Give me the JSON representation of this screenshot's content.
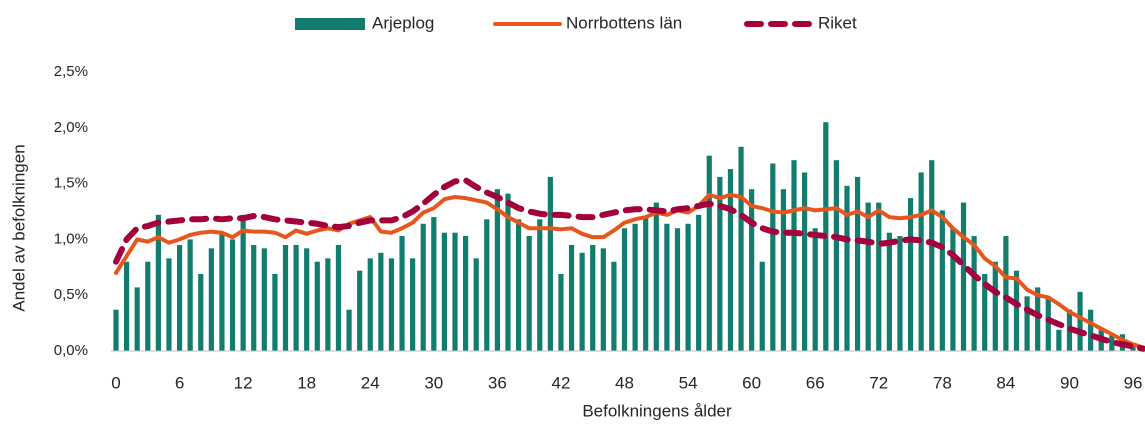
{
  "chart_data": {
    "type": "bar",
    "x_label": "Befolkningens ålder",
    "y_label": "Andel av befolkningen",
    "x": [
      0,
      1,
      2,
      3,
      4,
      5,
      6,
      7,
      8,
      9,
      10,
      11,
      12,
      13,
      14,
      15,
      16,
      17,
      18,
      19,
      20,
      21,
      22,
      23,
      24,
      25,
      26,
      27,
      28,
      29,
      30,
      31,
      32,
      33,
      34,
      35,
      36,
      37,
      38,
      39,
      40,
      41,
      42,
      43,
      44,
      45,
      46,
      47,
      48,
      49,
      50,
      51,
      52,
      53,
      54,
      55,
      56,
      57,
      58,
      59,
      60,
      61,
      62,
      63,
      64,
      65,
      66,
      67,
      68,
      69,
      70,
      71,
      72,
      73,
      74,
      75,
      76,
      77,
      78,
      79,
      80,
      81,
      82,
      83,
      84,
      85,
      86,
      87,
      88,
      89,
      90,
      91,
      92,
      93,
      94,
      95,
      96,
      97
    ],
    "xlim": [
      -0.5,
      97
    ],
    "xticks": [
      0,
      6,
      12,
      18,
      24,
      30,
      36,
      42,
      48,
      54,
      60,
      66,
      72,
      78,
      84,
      90,
      96
    ],
    "ylim": [
      0,
      2.5
    ],
    "yticks": [
      {
        "value": 0,
        "label": "0,0%"
      },
      {
        "value": 0.5,
        "label": "0,5%"
      },
      {
        "value": 1,
        "label": "1,0%"
      },
      {
        "value": 1.5,
        "label": "1,5%"
      },
      {
        "value": 2,
        "label": "2,0%"
      },
      {
        "value": 2.5,
        "label": "2,5%"
      }
    ],
    "grid": false,
    "legend": "top",
    "series": [
      {
        "name": "Arjeplog",
        "type": "bar",
        "color": "#137d6d",
        "values": [
          0.37,
          0.8,
          0.57,
          0.8,
          1.22,
          0.83,
          0.95,
          1.0,
          0.69,
          0.92,
          1.05,
          1.0,
          1.22,
          0.95,
          0.92,
          0.69,
          0.95,
          0.95,
          0.92,
          0.8,
          0.83,
          0.95,
          0.37,
          0.72,
          0.83,
          0.88,
          0.83,
          1.03,
          0.83,
          1.14,
          1.2,
          1.06,
          1.06,
          1.03,
          0.83,
          1.18,
          1.45,
          1.41,
          1.18,
          1.03,
          1.18,
          1.56,
          0.69,
          0.95,
          0.88,
          0.95,
          0.92,
          0.8,
          1.1,
          1.14,
          1.2,
          1.33,
          1.14,
          1.1,
          1.14,
          1.22,
          1.75,
          1.56,
          1.63,
          1.83,
          1.45,
          0.8,
          1.68,
          1.45,
          1.71,
          1.6,
          1.1,
          2.05,
          1.71,
          1.48,
          1.56,
          1.33,
          1.33,
          1.06,
          1.03,
          1.37,
          1.6,
          1.71,
          1.26,
          1.1,
          1.33,
          1.03,
          0.69,
          0.8,
          1.03,
          0.72,
          0.49,
          0.57,
          0.49,
          0.19,
          0.37,
          0.53,
          0.37,
          0.19,
          0.15,
          0.15,
          0.05,
          0.02
        ]
      },
      {
        "name": "Norrbottens län",
        "type": "line",
        "color": "#e8561e",
        "dashed": false,
        "values": [
          0.7,
          0.85,
          1.0,
          0.98,
          1.02,
          0.97,
          1.0,
          1.04,
          1.06,
          1.07,
          1.06,
          1.02,
          1.08,
          1.07,
          1.07,
          1.06,
          1.02,
          1.08,
          1.05,
          1.08,
          1.1,
          1.08,
          1.14,
          1.17,
          1.2,
          1.07,
          1.06,
          1.1,
          1.15,
          1.24,
          1.28,
          1.36,
          1.38,
          1.37,
          1.35,
          1.33,
          1.27,
          1.2,
          1.15,
          1.1,
          1.1,
          1.1,
          1.09,
          1.1,
          1.05,
          1.02,
          1.02,
          1.08,
          1.15,
          1.18,
          1.2,
          1.24,
          1.22,
          1.26,
          1.24,
          1.3,
          1.4,
          1.37,
          1.4,
          1.38,
          1.3,
          1.28,
          1.25,
          1.24,
          1.26,
          1.28,
          1.26,
          1.27,
          1.28,
          1.22,
          1.25,
          1.2,
          1.26,
          1.2,
          1.19,
          1.2,
          1.22,
          1.26,
          1.2,
          1.1,
          1.02,
          0.95,
          0.83,
          0.76,
          0.66,
          0.65,
          0.55,
          0.5,
          0.48,
          0.42,
          0.35,
          0.3,
          0.25,
          0.2,
          0.15,
          0.1,
          0.06,
          0.03
        ]
      },
      {
        "name": "Riket",
        "type": "line",
        "color": "#a3003d",
        "dashed": true,
        "values": [
          0.8,
          1.0,
          1.1,
          1.12,
          1.15,
          1.16,
          1.17,
          1.18,
          1.18,
          1.19,
          1.18,
          1.19,
          1.19,
          1.21,
          1.2,
          1.18,
          1.17,
          1.16,
          1.15,
          1.14,
          1.12,
          1.11,
          1.12,
          1.15,
          1.17,
          1.17,
          1.17,
          1.2,
          1.25,
          1.32,
          1.4,
          1.47,
          1.52,
          1.53,
          1.47,
          1.42,
          1.38,
          1.33,
          1.28,
          1.25,
          1.23,
          1.22,
          1.22,
          1.21,
          1.2,
          1.2,
          1.22,
          1.24,
          1.26,
          1.27,
          1.27,
          1.26,
          1.25,
          1.27,
          1.28,
          1.3,
          1.32,
          1.3,
          1.27,
          1.22,
          1.15,
          1.1,
          1.07,
          1.06,
          1.06,
          1.05,
          1.04,
          1.03,
          1.02,
          1.0,
          0.99,
          0.98,
          0.96,
          0.97,
          0.99,
          1.0,
          0.99,
          0.97,
          0.93,
          0.86,
          0.77,
          0.68,
          0.6,
          0.53,
          0.48,
          0.42,
          0.37,
          0.32,
          0.28,
          0.24,
          0.2,
          0.17,
          0.14,
          0.11,
          0.08,
          0.06,
          0.04,
          0.02
        ]
      }
    ]
  }
}
